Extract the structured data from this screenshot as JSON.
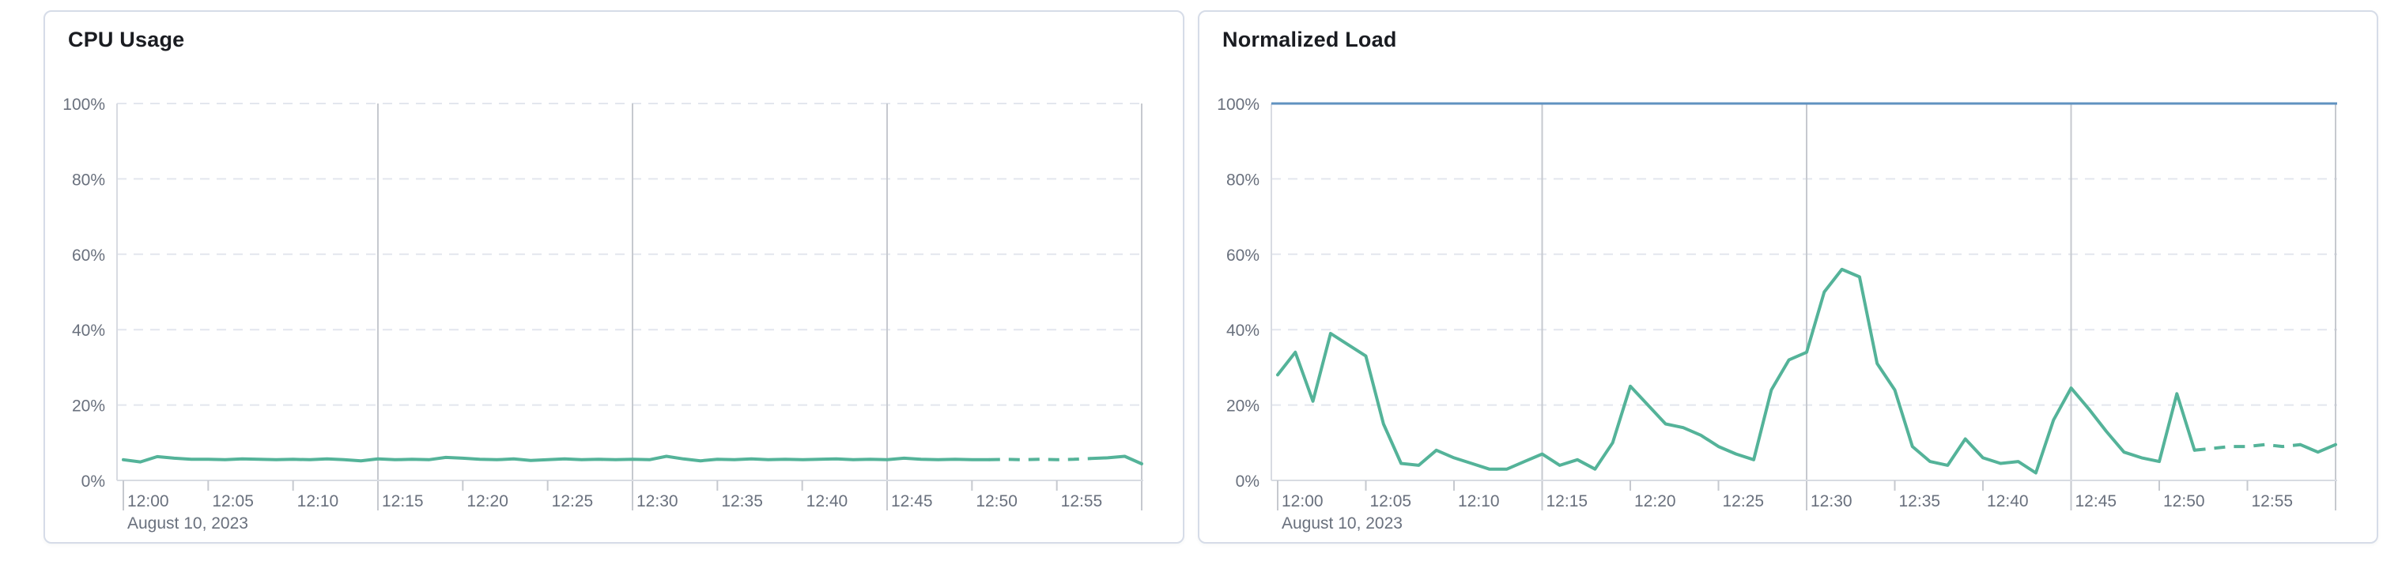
{
  "page": {
    "background_color": "#ffffff",
    "panel_border_color": "#d6dce8",
    "title_color": "#1a1c21",
    "tick_label_color": "#69707d",
    "gridline_dashed_color": "#e3e6ee",
    "gridline_solid_color": "#c6c9cf",
    "axis_line_color": "#d8dbe2"
  },
  "chart_data": [
    {
      "type": "line",
      "title": "CPU Usage",
      "x_axis": {
        "start": "12:00",
        "end": "13:00",
        "point_interval_minutes": 1,
        "tick_labels": [
          "12:00",
          "12:05",
          "12:10",
          "12:15",
          "12:20",
          "12:25",
          "12:30",
          "12:35",
          "12:40",
          "12:45",
          "12:50",
          "12:55"
        ],
        "tick_interval_minutes": 5,
        "date_label": "August 10, 2023",
        "solid_gridline_minutes": [
          15,
          30,
          45,
          60
        ]
      },
      "y_axis": {
        "min": 0,
        "max": 100,
        "unit": "%",
        "tick_values": [
          0,
          20,
          40,
          60,
          80,
          100
        ],
        "tick_labels": [
          "0%",
          "20%",
          "40%",
          "60%",
          "80%",
          "100%"
        ],
        "grid_dashed": true
      },
      "series": [
        {
          "name": "CPU Usage",
          "color": "#54B399",
          "unit": "%",
          "dashed_minutes": {
            "from": 51,
            "to": 57
          },
          "values": [
            5.5,
            4.9,
            6.3,
            5.9,
            5.6,
            5.6,
            5.5,
            5.7,
            5.6,
            5.5,
            5.6,
            5.5,
            5.7,
            5.5,
            5.2,
            5.7,
            5.5,
            5.6,
            5.5,
            6.1,
            5.9,
            5.6,
            5.5,
            5.7,
            5.3,
            5.5,
            5.7,
            5.5,
            5.6,
            5.5,
            5.6,
            5.5,
            6.4,
            5.7,
            5.2,
            5.6,
            5.5,
            5.7,
            5.5,
            5.6,
            5.5,
            5.6,
            5.7,
            5.5,
            5.6,
            5.5,
            5.9,
            5.6,
            5.5,
            5.6,
            5.5,
            5.5,
            5.6,
            5.5,
            5.6,
            5.5,
            5.6,
            5.8,
            6.0,
            6.4,
            4.4
          ]
        }
      ]
    },
    {
      "type": "line",
      "title": "Normalized Load",
      "x_axis": {
        "start": "12:00",
        "end": "13:00",
        "point_interval_minutes": 1,
        "tick_labels": [
          "12:00",
          "12:05",
          "12:10",
          "12:15",
          "12:20",
          "12:25",
          "12:30",
          "12:35",
          "12:40",
          "12:45",
          "12:50",
          "12:55"
        ],
        "tick_interval_minutes": 5,
        "date_label": "August 10, 2023",
        "solid_gridline_minutes": [
          15,
          30,
          45,
          60
        ]
      },
      "y_axis": {
        "min": 0,
        "max": 100,
        "unit": "%",
        "tick_values": [
          0,
          20,
          40,
          60,
          80,
          100
        ],
        "tick_labels": [
          "0%",
          "20%",
          "40%",
          "60%",
          "80%",
          "100%"
        ],
        "grid_dashed": true
      },
      "series": [
        {
          "name": "100% reference",
          "color": "#6092C0",
          "constant_value": 100
        },
        {
          "name": "Normalized Load",
          "color": "#54B399",
          "unit": "%",
          "dashed_minutes": {
            "from": 52,
            "to": 58
          },
          "values": [
            28,
            34,
            21,
            39,
            36,
            33,
            15,
            4.5,
            4,
            8,
            6,
            4.5,
            3,
            3,
            5,
            7,
            4,
            5.5,
            3,
            10,
            25,
            20,
            15,
            14,
            12,
            9,
            7,
            5.5,
            24,
            32,
            34,
            50,
            56,
            54,
            31,
            24,
            9,
            5,
            4,
            11,
            6,
            4.5,
            5,
            2,
            16,
            24.5,
            19,
            13,
            7.5,
            6,
            5,
            23,
            8,
            8.5,
            9,
            9,
            9.5,
            9,
            9.5,
            7.5,
            9.5
          ]
        }
      ]
    }
  ]
}
